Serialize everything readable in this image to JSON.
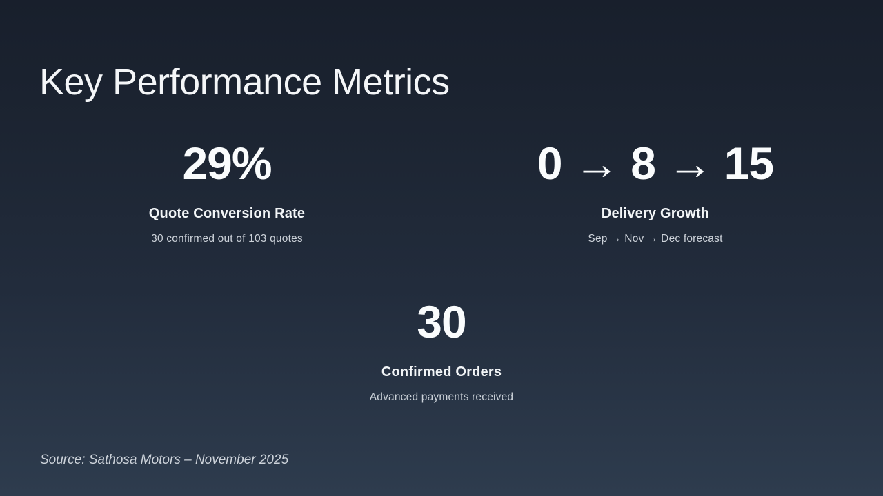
{
  "slide": {
    "title": "Key Performance Metrics",
    "metrics": [
      {
        "value": "29%",
        "label": "Quote Conversion Rate",
        "detail": "30 confirmed out of 103 quotes"
      },
      {
        "value": "0 → 8 → 15",
        "label": "Delivery Growth",
        "detail": "Sep → Nov → Dec forecast"
      },
      {
        "value": "30",
        "label": "Confirmed Orders",
        "detail": "Advanced payments received"
      }
    ],
    "source": "Source: Sathosa Motors – November 2025",
    "colors": {
      "background_top": "#181f2c",
      "background_bottom": "#2e3c4e",
      "text_primary": "#f7f9fa",
      "text_secondary": "#ccd2d9"
    }
  }
}
